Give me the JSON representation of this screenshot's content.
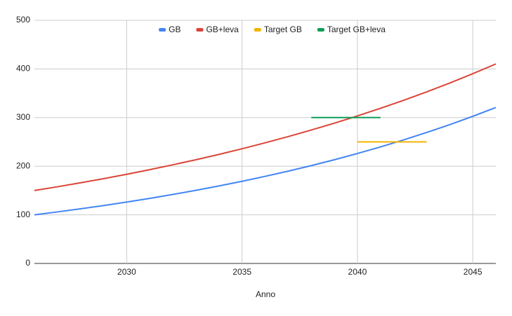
{
  "chart_data": {
    "type": "line",
    "x_label": "Anno",
    "x": [
      2026,
      2027,
      2028,
      2029,
      2030,
      2031,
      2032,
      2033,
      2034,
      2035,
      2036,
      2037,
      2038,
      2039,
      2040,
      2041,
      2042,
      2043,
      2044,
      2045,
      2046
    ],
    "series": [
      {
        "name": "GB",
        "color": "#4285f4",
        "values": [
          100,
          106,
          112.4,
          119.1,
          126.2,
          133.8,
          141.9,
          150.4,
          159.4,
          169,
          179.1,
          189.8,
          201.2,
          213.3,
          226.1,
          239.7,
          254,
          269.3,
          285.4,
          302.6,
          320.7
        ]
      },
      {
        "name": "GB+leva",
        "color": "#db4437",
        "values": [
          150,
          157.7,
          165.9,
          174.4,
          183.4,
          192.9,
          202.9,
          213.3,
          224.3,
          235.9,
          248.1,
          260.9,
          274.4,
          288.5,
          303.4,
          319.1,
          335.5,
          352.8,
          371,
          390.2,
          410.3
        ]
      },
      {
        "name": "Target GB",
        "color": "#f4b400",
        "values": [
          null,
          null,
          null,
          null,
          null,
          null,
          null,
          null,
          null,
          null,
          null,
          null,
          null,
          null,
          250,
          250,
          250,
          250,
          null,
          null,
          null
        ]
      },
      {
        "name": "Target GB+leva",
        "color": "#0f9d58",
        "values": [
          null,
          null,
          null,
          null,
          null,
          null,
          null,
          null,
          null,
          null,
          null,
          null,
          300,
          300,
          300,
          300,
          null,
          null,
          null,
          null,
          null
        ]
      }
    ],
    "xlim": [
      2026,
      2046
    ],
    "xticks": [
      2030,
      2035,
      2040,
      2045
    ],
    "ylim": [
      0,
      500
    ],
    "yticks": [
      0,
      100,
      200,
      300,
      400,
      500
    ],
    "grid": true,
    "legend": "top"
  }
}
